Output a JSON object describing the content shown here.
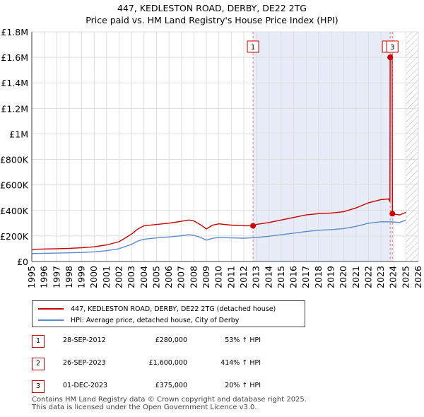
{
  "chart_data": {
    "type": "line",
    "title": "447, KEDLESTON ROAD, DERBY, DE22 2TG",
    "subtitle": "Price paid vs. HM Land Registry's House Price Index (HPI)",
    "xlim": [
      1995,
      2026
    ],
    "ylim": [
      0,
      1800000
    ],
    "x_ticks": [
      1995,
      1996,
      1997,
      1998,
      1999,
      2000,
      2001,
      2002,
      2003,
      2004,
      2005,
      2006,
      2007,
      2008,
      2009,
      2010,
      2011,
      2012,
      2013,
      2014,
      2015,
      2016,
      2017,
      2018,
      2019,
      2020,
      2021,
      2022,
      2023,
      2024,
      2025,
      2026
    ],
    "y_ticks": [
      0,
      200000,
      400000,
      600000,
      800000,
      1000000,
      1200000,
      1400000,
      1600000,
      1800000
    ],
    "y_tick_labels": [
      "£0",
      "£200K",
      "£400K",
      "£600K",
      "£800K",
      "£1M",
      "£1.2M",
      "£1.4M",
      "£1.6M",
      "£1.8M"
    ],
    "grid": true,
    "shaded_range": [
      2012.74,
      2023.92
    ],
    "hatched_from": 2025.0,
    "series": [
      {
        "name": "447, KEDLESTON ROAD, DERBY, DE22 2TG (detached house)",
        "color": "#cc0000",
        "x": [
          1995,
          1996,
          1997,
          1998,
          1999,
          2000,
          2001,
          2002,
          2003,
          2003.5,
          2004,
          2005,
          2006,
          2007,
          2007.6,
          2008,
          2008.5,
          2009,
          2009.5,
          2010,
          2011,
          2012,
          2012.74,
          2013,
          2014,
          2015,
          2016,
          2017,
          2018,
          2019,
          2020,
          2021,
          2022,
          2023,
          2023.6,
          2023.72,
          2023.74,
          2023.9,
          2023.92,
          2024,
          2024.5,
          2025
        ],
        "y": [
          95000,
          98000,
          100000,
          103000,
          108000,
          115000,
          130000,
          155000,
          215000,
          255000,
          280000,
          290000,
          300000,
          315000,
          325000,
          318000,
          290000,
          255000,
          285000,
          295000,
          285000,
          280000,
          280000,
          290000,
          305000,
          325000,
          345000,
          365000,
          375000,
          380000,
          390000,
          420000,
          460000,
          485000,
          490000,
          470000,
          1600000,
          1620000,
          375000,
          372000,
          365000,
          385000
        ]
      },
      {
        "name": "HPI: Average price, detached house, City of Derby",
        "color": "#5b8ccc",
        "x": [
          1995,
          1996,
          1997,
          1998,
          1999,
          2000,
          2001,
          2002,
          2003,
          2003.5,
          2004,
          2005,
          2006,
          2007,
          2007.6,
          2008,
          2008.5,
          2009,
          2009.5,
          2010,
          2011,
          2012,
          2013,
          2014,
          2015,
          2016,
          2017,
          2018,
          2019,
          2020,
          2021,
          2022,
          2023,
          2024,
          2024.5,
          2025
        ],
        "y": [
          62000,
          64000,
          66000,
          68000,
          71000,
          76000,
          85000,
          100000,
          135000,
          160000,
          175000,
          185000,
          192000,
          202000,
          210000,
          205000,
          190000,
          168000,
          182000,
          188000,
          185000,
          183000,
          188000,
          198000,
          210000,
          222000,
          235000,
          245000,
          250000,
          258000,
          275000,
          300000,
          312000,
          310000,
          305000,
          325000
        ]
      }
    ],
    "markers": [
      {
        "label": "1",
        "x": 2012.74,
        "y": 280000
      },
      {
        "label": "2",
        "x": 2023.74,
        "y": 1600000
      },
      {
        "label": "3",
        "x": 2023.92,
        "y": 375000
      }
    ]
  },
  "legend": {
    "items": [
      {
        "label": "447, KEDLESTON ROAD, DERBY, DE22 2TG (detached house)",
        "color": "#cc0000"
      },
      {
        "label": "HPI: Average price, detached house, City of Derby",
        "color": "#5b8ccc"
      }
    ]
  },
  "transactions": [
    {
      "num": "1",
      "date": "28-SEP-2012",
      "price": "£280,000",
      "hpi": "53% ↑ HPI"
    },
    {
      "num": "2",
      "date": "26-SEP-2023",
      "price": "£1,600,000",
      "hpi": "414% ↑ HPI"
    },
    {
      "num": "3",
      "date": "01-DEC-2023",
      "price": "£375,000",
      "hpi": "20% ↑ HPI"
    }
  ],
  "footer": {
    "line1": "Contains HM Land Registry data © Crown copyright and database right 2025.",
    "line2": "This data is licensed under the Open Government Licence v3.0."
  }
}
